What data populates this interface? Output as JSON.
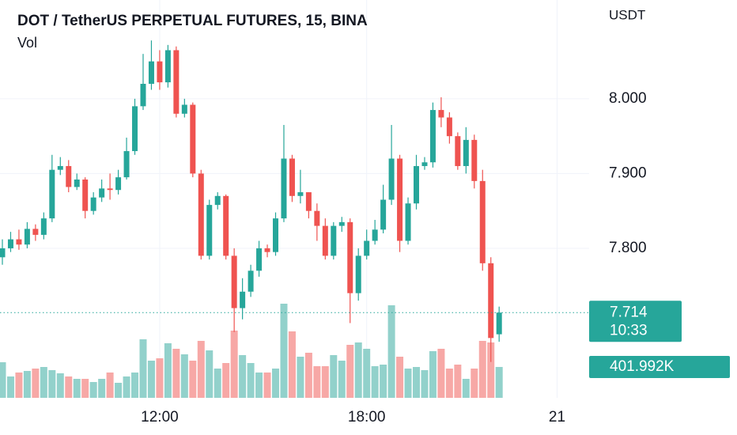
{
  "chart_data": {
    "type": "candlestick",
    "title": "DOT / TetherUS PERPETUAL FUTURES, 15, BINA",
    "subtitle": "Vol",
    "y_axis_label": "USDT",
    "countdown": "10:33",
    "categories": [
      null,
      null,
      null,
      null,
      null,
      null,
      null,
      null,
      null,
      null,
      null,
      null,
      null,
      null,
      null,
      null,
      null,
      null,
      null,
      null,
      null,
      null,
      null,
      null,
      null,
      null,
      null,
      null,
      null,
      null,
      null,
      null,
      null,
      null,
      null,
      null,
      null,
      null,
      null,
      null,
      null,
      null,
      null,
      null,
      null,
      null,
      null,
      null,
      null,
      null,
      null,
      null,
      null,
      null,
      null,
      null,
      null,
      null,
      null,
      null,
      null
    ],
    "open": [
      7.788,
      7.8,
      7.812,
      7.805,
      7.826,
      7.818,
      7.84,
      7.905,
      7.91,
      7.882,
      7.892,
      7.85,
      7.868,
      7.88,
      7.878,
      7.895,
      7.93,
      7.99,
      8.02,
      8.05,
      8.022,
      8.065,
      7.98,
      7.992,
      7.9,
      7.79,
      7.858,
      7.87,
      7.79,
      7.72,
      7.742,
      7.77,
      7.8,
      7.795,
      7.84,
      7.92,
      7.87,
      7.875,
      7.85,
      7.83,
      7.79,
      7.83,
      7.835,
      7.74,
      7.79,
      7.81,
      7.825,
      7.865,
      7.92,
      7.81,
      7.86,
      7.91,
      7.915,
      7.985,
      7.975,
      7.95,
      7.91,
      7.945,
      7.89,
      7.78,
      7.685
    ],
    "high": [
      7.812,
      7.822,
      7.825,
      7.835,
      7.832,
      7.848,
      7.925,
      7.922,
      7.918,
      7.9,
      7.895,
      7.875,
      7.892,
      7.9,
      7.905,
      7.948,
      8.0,
      8.06,
      8.078,
      8.065,
      8.072,
      8.07,
      8.0,
      7.995,
      7.905,
      7.865,
      7.875,
      7.872,
      7.8,
      7.76,
      7.778,
      7.81,
      7.805,
      7.848,
      7.965,
      7.925,
      7.905,
      7.875,
      7.86,
      7.84,
      7.835,
      7.842,
      7.84,
      7.8,
      7.825,
      7.838,
      7.885,
      7.965,
      7.925,
      7.868,
      7.925,
      7.922,
      7.995,
      8.002,
      7.982,
      7.955,
      7.962,
      7.952,
      7.905,
      7.788,
      7.722
    ],
    "low": [
      7.778,
      7.795,
      7.798,
      7.8,
      7.81,
      7.812,
      7.835,
      7.898,
      7.875,
      7.878,
      7.84,
      7.845,
      7.862,
      7.865,
      7.872,
      7.892,
      7.925,
      7.985,
      8.012,
      8.012,
      8.015,
      7.975,
      7.975,
      7.895,
      7.785,
      7.785,
      7.852,
      7.785,
      7.688,
      7.705,
      7.735,
      7.762,
      7.788,
      7.79,
      7.835,
      7.862,
      7.86,
      7.84,
      7.81,
      7.785,
      7.785,
      7.822,
      7.7,
      7.73,
      7.785,
      7.805,
      7.82,
      7.858,
      7.795,
      7.805,
      7.852,
      7.905,
      7.908,
      7.962,
      7.94,
      7.905,
      7.9,
      7.88,
      7.77,
      7.648,
      7.675
    ],
    "close": [
      7.8,
      7.812,
      7.805,
      7.826,
      7.818,
      7.84,
      7.905,
      7.91,
      7.882,
      7.892,
      7.85,
      7.868,
      7.88,
      7.878,
      7.895,
      7.93,
      7.99,
      8.02,
      8.05,
      8.022,
      8.065,
      7.98,
      7.992,
      7.9,
      7.79,
      7.858,
      7.87,
      7.79,
      7.72,
      7.742,
      7.77,
      7.8,
      7.795,
      7.84,
      7.92,
      7.87,
      7.875,
      7.85,
      7.83,
      7.79,
      7.83,
      7.835,
      7.74,
      7.79,
      7.81,
      7.825,
      7.865,
      7.92,
      7.81,
      7.86,
      7.91,
      7.915,
      7.985,
      7.975,
      7.95,
      7.91,
      7.945,
      7.89,
      7.78,
      7.68,
      7.714
    ],
    "volume": [
      463500,
      278100,
      329600,
      350200,
      381100,
      401700,
      360500,
      319300,
      278100,
      247200,
      247200,
      206000,
      247200,
      329600,
      195700,
      278100,
      329600,
      762200,
      484100,
      515000,
      710700,
      638600,
      566500,
      484100,
      741600,
      618000,
      381100,
      453200,
      875500,
      556200,
      453200,
      329600,
      329600,
      381100,
      1225700,
      865200,
      535600,
      587100,
      412000,
      412000,
      556200,
      484100,
      690100,
      721000,
      638600,
      412000,
      432600,
      1205100,
      535600,
      381100,
      401700,
      360500,
      607700,
      638600,
      381100,
      432600,
      247200,
      381100,
      741600,
      721000,
      401992
    ],
    "volume_labels": [
      null,
      null,
      null,
      null,
      null,
      null,
      null,
      null,
      null,
      null,
      null,
      null,
      null,
      null,
      null,
      null,
      null,
      null,
      null,
      null,
      null,
      null,
      null,
      null,
      null,
      null,
      null,
      null,
      null,
      null,
      null,
      null,
      null,
      null,
      null,
      null,
      null,
      null,
      null,
      null,
      null,
      null,
      null,
      null,
      null,
      null,
      null,
      null,
      null,
      null,
      null,
      null,
      null,
      null,
      null,
      null,
      null,
      null,
      null,
      null,
      "401.992K"
    ],
    "ylim": [
      7.6,
      8.13
    ],
    "yticks": [
      {
        "value": 7.8,
        "label": "7.800"
      },
      {
        "value": 7.9,
        "label": "7.900"
      },
      {
        "value": 8.0,
        "label": "8.000"
      }
    ],
    "y2lim": [
      0,
      5160000
    ],
    "xticks": [
      {
        "value": 19,
        "label": "12:00"
      },
      {
        "value": 44,
        "label": "18:00"
      },
      {
        "value": 67,
        "label": "21"
      }
    ],
    "grid": true,
    "up_color": "#26a69a",
    "down_color": "#ef5350",
    "volume_up_color": "#92d1cb",
    "volume_down_color": "#f7a8a6"
  }
}
